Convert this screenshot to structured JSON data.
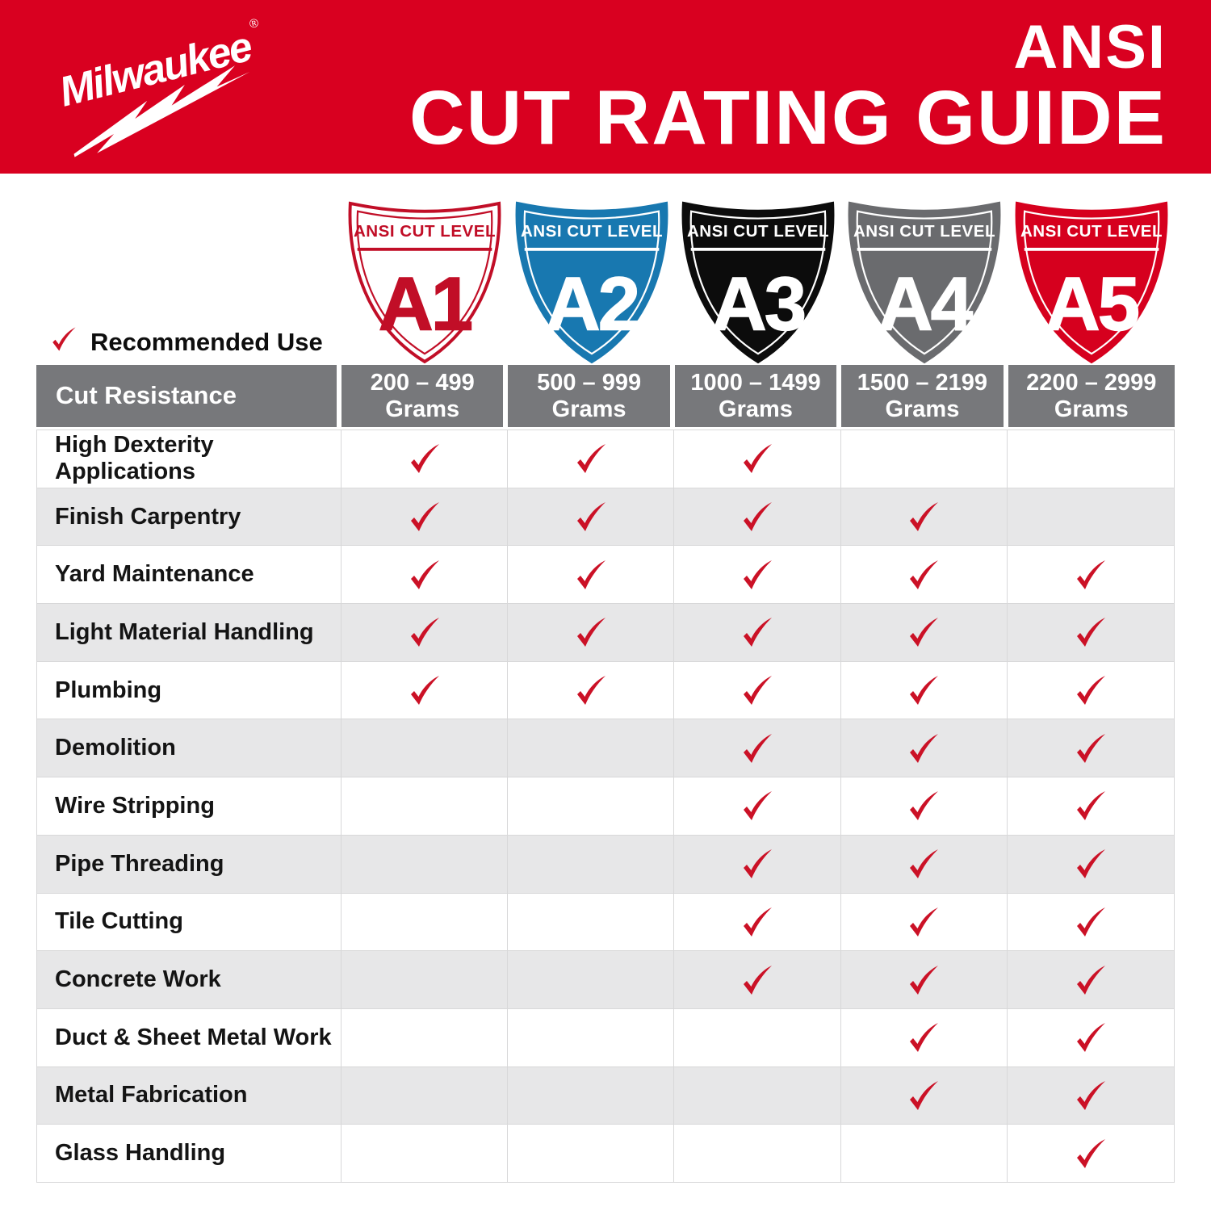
{
  "brand": {
    "name": "Milwaukee",
    "registered": "®"
  },
  "header": {
    "title_line1": "ANSI",
    "title_line2": "CUT RATING GUIDE",
    "bg_color": "#D90020",
    "text_color": "#FFFFFF"
  },
  "recommended": {
    "label": "Recommended Use"
  },
  "colors": {
    "check_red": "#CB1126",
    "header_gray": "#77787B",
    "alt_row_gray": "#E7E7E8",
    "grid_line": "#D8D8D9"
  },
  "shields": [
    {
      "level": "A1",
      "band_label": "ANSI CUT LEVEL",
      "fill": "#FFFFFF",
      "border": "#C10E27",
      "line": "#C10E27",
      "text": "#C10E27"
    },
    {
      "level": "A2",
      "band_label": "ANSI CUT LEVEL",
      "fill": "#1878B0",
      "border": "#1878B0",
      "line": "#FFFFFF",
      "text": "#FFFFFF"
    },
    {
      "level": "A3",
      "band_label": "ANSI CUT LEVEL",
      "fill": "#0C0C0C",
      "border": "#0C0C0C",
      "line": "#FFFFFF",
      "text": "#FFFFFF"
    },
    {
      "level": "A4",
      "band_label": "ANSI CUT LEVEL",
      "fill": "#6A6B6E",
      "border": "#6A6B6E",
      "line": "#FFFFFF",
      "text": "#FFFFFF"
    },
    {
      "level": "A5",
      "band_label": "ANSI CUT LEVEL",
      "fill": "#D6001E",
      "border": "#D6001E",
      "line": "#FFFFFF",
      "text": "#FFFFFF"
    }
  ],
  "table": {
    "corner_label": "Cut Resistance",
    "columns": [
      {
        "range": "200 – 499",
        "unit": "Grams"
      },
      {
        "range": "500 – 999",
        "unit": "Grams"
      },
      {
        "range": "1000 – 1499",
        "unit": "Grams"
      },
      {
        "range": "1500 – 2199",
        "unit": "Grams"
      },
      {
        "range": "2200 – 2999",
        "unit": "Grams"
      }
    ],
    "rows": [
      {
        "label": "High Dexterity Applications",
        "checks": [
          true,
          true,
          true,
          false,
          false
        ]
      },
      {
        "label": "Finish Carpentry",
        "checks": [
          true,
          true,
          true,
          true,
          false
        ]
      },
      {
        "label": "Yard Maintenance",
        "checks": [
          true,
          true,
          true,
          true,
          true
        ]
      },
      {
        "label": "Light Material Handling",
        "checks": [
          true,
          true,
          true,
          true,
          true
        ]
      },
      {
        "label": "Plumbing",
        "checks": [
          true,
          true,
          true,
          true,
          true
        ]
      },
      {
        "label": "Demolition",
        "checks": [
          false,
          false,
          true,
          true,
          true
        ]
      },
      {
        "label": "Wire Stripping",
        "checks": [
          false,
          false,
          true,
          true,
          true
        ]
      },
      {
        "label": "Pipe Threading",
        "checks": [
          false,
          false,
          true,
          true,
          true
        ]
      },
      {
        "label": "Tile Cutting",
        "checks": [
          false,
          false,
          true,
          true,
          true
        ]
      },
      {
        "label": "Concrete Work",
        "checks": [
          false,
          false,
          true,
          true,
          true
        ]
      },
      {
        "label": "Duct & Sheet Metal Work",
        "checks": [
          false,
          false,
          false,
          true,
          true
        ]
      },
      {
        "label": "Metal Fabrication",
        "checks": [
          false,
          false,
          false,
          true,
          true
        ]
      },
      {
        "label": "Glass Handling",
        "checks": [
          false,
          false,
          false,
          false,
          true
        ]
      }
    ]
  }
}
